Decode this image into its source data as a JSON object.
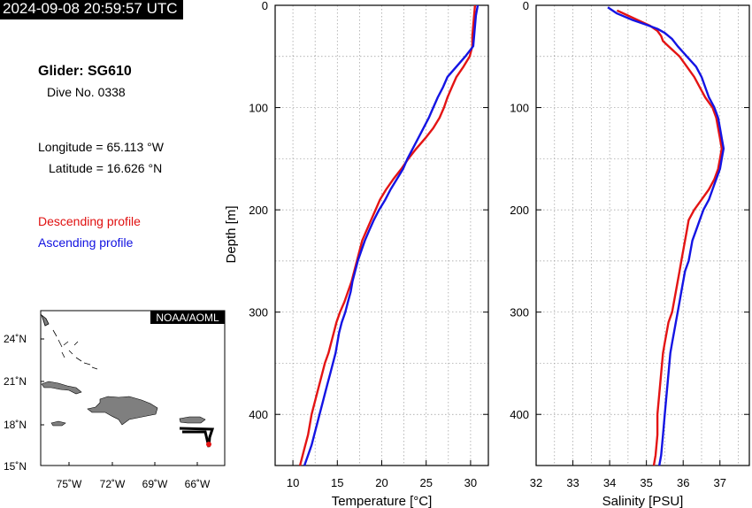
{
  "timestamp": "2024-09-08 20:59:57 UTC",
  "glider": "Glider: SG610",
  "dive": "Dive No. 0338",
  "longitude": "Longitude = 65.113 °W",
  "latitude": "Latitude = 16.626 °N",
  "legend": {
    "descending": "Descending profile",
    "ascending": "Ascending profile"
  },
  "colors": {
    "descending": "#e41414",
    "ascending": "#1414e4",
    "land": "#7f7f7f"
  },
  "map": {
    "credit": "NOAA/AOML",
    "lat_ticks": [
      "24˚N",
      "21˚N",
      "18˚N",
      "15˚N"
    ],
    "lon_ticks": [
      "75˚W",
      "72˚W",
      "69˚W",
      "66˚W"
    ]
  },
  "chart_data": [
    {
      "type": "line",
      "xlabel": "Temperature [°C]",
      "ylabel": "Depth [m]",
      "xlim": [
        8,
        32
      ],
      "ylim": [
        450,
        0
      ],
      "x_ticks": [
        10,
        15,
        20,
        25,
        30
      ],
      "y_ticks": [
        0,
        100,
        200,
        300,
        400
      ],
      "grid": true,
      "series": [
        {
          "name": "Descending profile",
          "points": [
            [
              30.5,
              0
            ],
            [
              30.4,
              10
            ],
            [
              30.3,
              20
            ],
            [
              30.2,
              30
            ],
            [
              30.2,
              40
            ],
            [
              29.9,
              50
            ],
            [
              29.2,
              60
            ],
            [
              28.4,
              70
            ],
            [
              27.9,
              80
            ],
            [
              27.4,
              90
            ],
            [
              27.0,
              100
            ],
            [
              26.5,
              110
            ],
            [
              25.8,
              120
            ],
            [
              24.9,
              130
            ],
            [
              23.9,
              140
            ],
            [
              23.0,
              150
            ],
            [
              22.2,
              160
            ],
            [
              21.3,
              170
            ],
            [
              20.5,
              180
            ],
            [
              19.8,
              190
            ],
            [
              19.3,
              200
            ],
            [
              18.8,
              210
            ],
            [
              18.3,
              220
            ],
            [
              17.8,
              230
            ],
            [
              17.5,
              240
            ],
            [
              17.2,
              250
            ],
            [
              16.9,
              260
            ],
            [
              16.6,
              270
            ],
            [
              16.2,
              280
            ],
            [
              15.8,
              290
            ],
            [
              15.3,
              300
            ],
            [
              14.9,
              310
            ],
            [
              14.6,
              320
            ],
            [
              14.3,
              330
            ],
            [
              14.0,
              340
            ],
            [
              13.6,
              350
            ],
            [
              13.3,
              360
            ],
            [
              13.0,
              370
            ],
            [
              12.7,
              380
            ],
            [
              12.4,
              390
            ],
            [
              12.1,
              400
            ],
            [
              11.9,
              410
            ],
            [
              11.7,
              420
            ],
            [
              11.4,
              430
            ],
            [
              11.1,
              440
            ],
            [
              10.8,
              450
            ]
          ]
        },
        {
          "name": "Ascending profile",
          "points": [
            [
              30.8,
              0
            ],
            [
              30.6,
              10
            ],
            [
              30.5,
              20
            ],
            [
              30.4,
              30
            ],
            [
              30.3,
              40
            ],
            [
              29.4,
              50
            ],
            [
              28.4,
              60
            ],
            [
              27.4,
              70
            ],
            [
              26.9,
              80
            ],
            [
              26.3,
              90
            ],
            [
              25.8,
              100
            ],
            [
              25.3,
              110
            ],
            [
              24.7,
              120
            ],
            [
              24.1,
              130
            ],
            [
              23.5,
              140
            ],
            [
              22.9,
              150
            ],
            [
              22.4,
              160
            ],
            [
              21.7,
              170
            ],
            [
              21.0,
              180
            ],
            [
              20.4,
              190
            ],
            [
              19.7,
              200
            ],
            [
              19.1,
              210
            ],
            [
              18.6,
              220
            ],
            [
              18.1,
              230
            ],
            [
              17.7,
              240
            ],
            [
              17.3,
              250
            ],
            [
              17.0,
              260
            ],
            [
              16.7,
              270
            ],
            [
              16.5,
              280
            ],
            [
              16.2,
              290
            ],
            [
              15.9,
              300
            ],
            [
              15.5,
              310
            ],
            [
              15.2,
              320
            ],
            [
              15.0,
              330
            ],
            [
              14.8,
              340
            ],
            [
              14.5,
              350
            ],
            [
              14.2,
              360
            ],
            [
              13.9,
              370
            ],
            [
              13.6,
              380
            ],
            [
              13.3,
              390
            ],
            [
              13.0,
              400
            ],
            [
              12.7,
              410
            ],
            [
              12.4,
              420
            ],
            [
              12.1,
              430
            ],
            [
              11.7,
              440
            ],
            [
              11.3,
              450
            ]
          ]
        }
      ]
    },
    {
      "type": "line",
      "xlabel": "Salinity [PSU]",
      "ylabel": "",
      "xlim": [
        32,
        37.8
      ],
      "ylim": [
        450,
        0
      ],
      "x_ticks": [
        32,
        33,
        34,
        35,
        36,
        37
      ],
      "y_ticks": [
        0,
        100,
        200,
        300,
        400
      ],
      "grid": true,
      "series": [
        {
          "name": "Descending profile",
          "points": [
            [
              34.2,
              5
            ],
            [
              34.5,
              10
            ],
            [
              34.8,
              15
            ],
            [
              35.1,
              20
            ],
            [
              35.3,
              25
            ],
            [
              35.4,
              30
            ],
            [
              35.45,
              35
            ],
            [
              35.6,
              40
            ],
            [
              35.9,
              50
            ],
            [
              36.1,
              60
            ],
            [
              36.3,
              70
            ],
            [
              36.45,
              80
            ],
            [
              36.6,
              90
            ],
            [
              36.8,
              100
            ],
            [
              36.9,
              110
            ],
            [
              36.95,
              120
            ],
            [
              37.0,
              130
            ],
            [
              37.05,
              140
            ],
            [
              37.0,
              150
            ],
            [
              36.95,
              160
            ],
            [
              36.85,
              170
            ],
            [
              36.7,
              180
            ],
            [
              36.5,
              190
            ],
            [
              36.3,
              200
            ],
            [
              36.15,
              210
            ],
            [
              36.1,
              220
            ],
            [
              36.05,
              230
            ],
            [
              36.0,
              240
            ],
            [
              35.95,
              250
            ],
            [
              35.9,
              260
            ],
            [
              35.85,
              270
            ],
            [
              35.8,
              280
            ],
            [
              35.75,
              290
            ],
            [
              35.7,
              300
            ],
            [
              35.6,
              310
            ],
            [
              35.55,
              320
            ],
            [
              35.5,
              330
            ],
            [
              35.45,
              340
            ],
            [
              35.4,
              360
            ],
            [
              35.35,
              380
            ],
            [
              35.3,
              400
            ],
            [
              35.3,
              420
            ],
            [
              35.25,
              440
            ],
            [
              35.2,
              450
            ]
          ]
        },
        {
          "name": "Ascending profile",
          "points": [
            [
              33.95,
              2
            ],
            [
              34.2,
              8
            ],
            [
              34.6,
              14
            ],
            [
              35.0,
              19
            ],
            [
              35.3,
              23
            ],
            [
              35.5,
              27
            ],
            [
              35.7,
              33
            ],
            [
              35.85,
              40
            ],
            [
              36.1,
              50
            ],
            [
              36.35,
              60
            ],
            [
              36.5,
              70
            ],
            [
              36.6,
              80
            ],
            [
              36.7,
              90
            ],
            [
              36.85,
              100
            ],
            [
              36.95,
              110
            ],
            [
              37.0,
              120
            ],
            [
              37.05,
              130
            ],
            [
              37.1,
              140
            ],
            [
              37.05,
              150
            ],
            [
              37.0,
              160
            ],
            [
              36.9,
              170
            ],
            [
              36.8,
              180
            ],
            [
              36.7,
              190
            ],
            [
              36.55,
              200
            ],
            [
              36.45,
              210
            ],
            [
              36.35,
              220
            ],
            [
              36.25,
              230
            ],
            [
              36.2,
              240
            ],
            [
              36.15,
              250
            ],
            [
              36.05,
              260
            ],
            [
              36.0,
              270
            ],
            [
              35.95,
              280
            ],
            [
              35.9,
              290
            ],
            [
              35.85,
              300
            ],
            [
              35.8,
              310
            ],
            [
              35.75,
              320
            ],
            [
              35.7,
              330
            ],
            [
              35.65,
              340
            ],
            [
              35.6,
              360
            ],
            [
              35.55,
              380
            ],
            [
              35.5,
              400
            ],
            [
              35.45,
              420
            ],
            [
              35.4,
              440
            ],
            [
              35.35,
              450
            ]
          ]
        }
      ]
    }
  ]
}
